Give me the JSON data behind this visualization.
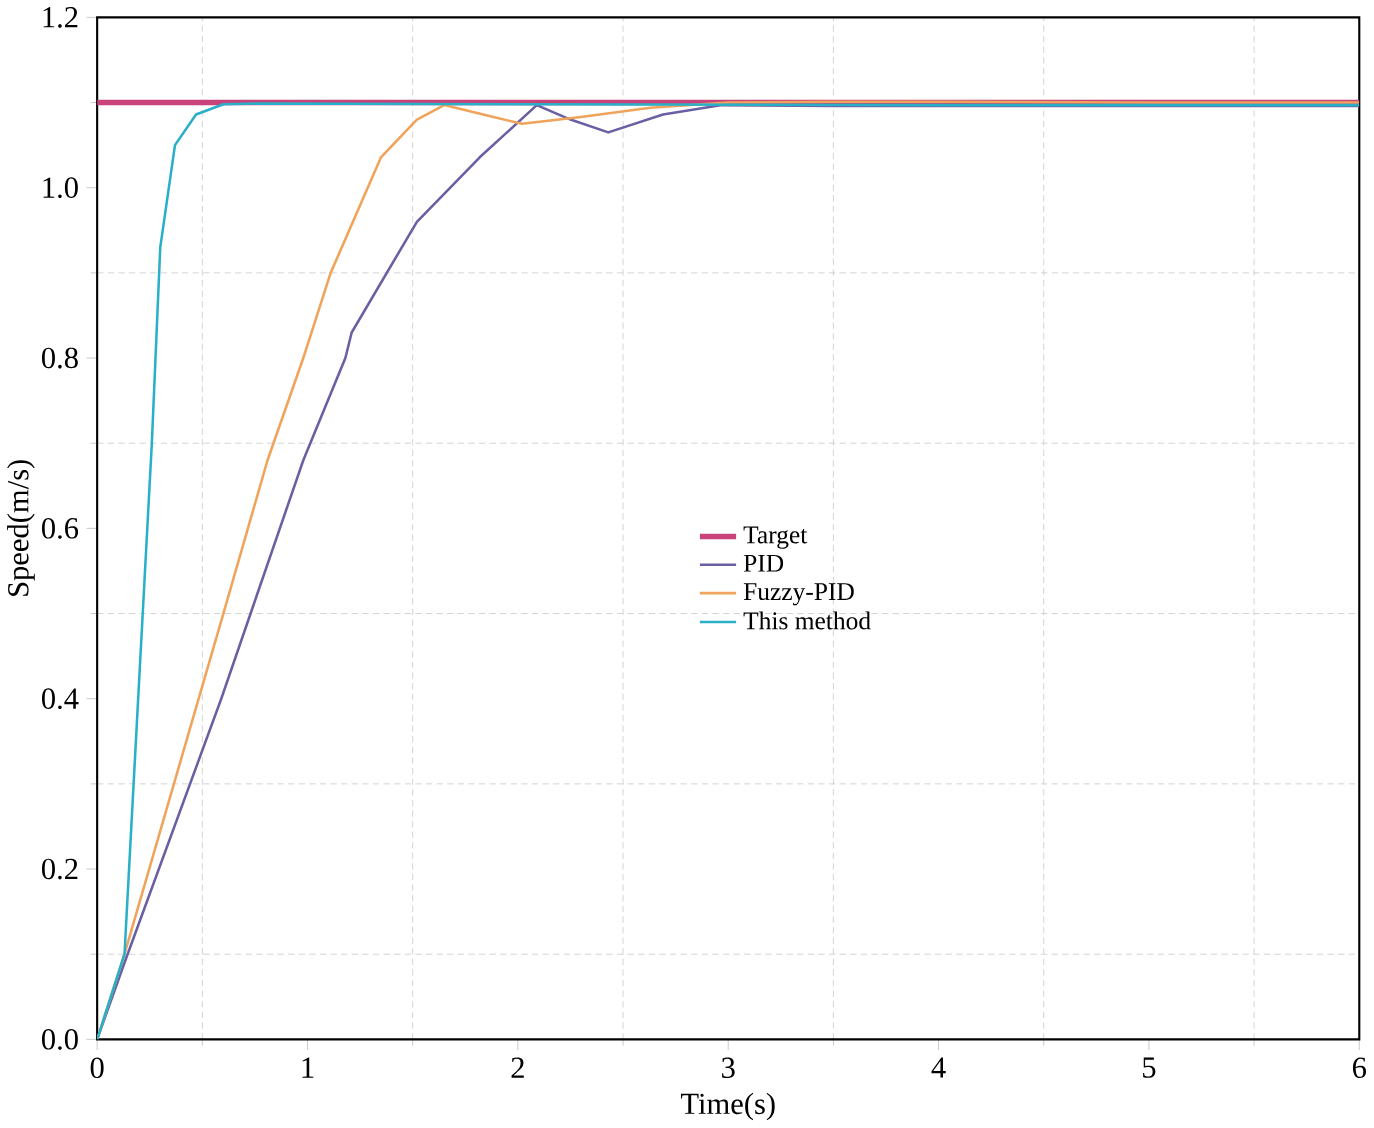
{
  "chart_data": {
    "type": "line",
    "xlabel": "Time(s)",
    "ylabel": "Speed(m/s)",
    "xlim": [
      0,
      6
    ],
    "ylim": [
      0,
      1.2
    ],
    "xticks": [
      0,
      1,
      2,
      3,
      4,
      5,
      6
    ],
    "yticks": [
      {
        "value": 0,
        "label": "0.0"
      },
      {
        "value": 0.2,
        "label": "0.2"
      },
      {
        "value": 0.4,
        "label": "0.4"
      },
      {
        "value": 0.6,
        "label": "0.6"
      },
      {
        "value": 0.8,
        "label": "0.8"
      },
      {
        "value": 1.0,
        "label": "1.0"
      },
      {
        "value": 1.2,
        "label": "1.2"
      }
    ],
    "grid": true,
    "legend": "right",
    "marker": "none",
    "line_style": "solid",
    "series": [
      {
        "name": "Target",
        "color": "#c8437a",
        "x": [
          0,
          6
        ],
        "values": [
          1.1,
          1.1
        ]
      },
      {
        "name": "PID",
        "color": "#6a5fa3",
        "x": [
          0,
          0.13,
          0.59,
          0.98,
          1.18,
          1.21,
          1.52,
          1.82,
          2.09,
          2.25,
          2.43,
          2.69,
          2.97,
          3.5,
          4,
          5,
          6
        ],
        "values": [
          0,
          0.09,
          0.4,
          0.68,
          0.8,
          0.83,
          0.96,
          1.036,
          1.097,
          1.08,
          1.065,
          1.086,
          1.097,
          1.096,
          1.096,
          1.096,
          1.096
        ]
      },
      {
        "name": "Fuzzy-PID",
        "color": "#f0a35a",
        "x": [
          0,
          0.13,
          0.6,
          0.81,
          0.98,
          1.11,
          1.35,
          1.52,
          1.65,
          1.85,
          2.02,
          2.3,
          2.63,
          3.0,
          3.5,
          4,
          5,
          6
        ],
        "values": [
          0,
          0.1,
          0.5,
          0.68,
          0.8,
          0.9,
          1.036,
          1.08,
          1.097,
          1.085,
          1.075,
          1.083,
          1.094,
          1.1,
          1.101,
          1.101,
          1.1,
          1.1
        ]
      },
      {
        "name": "This method",
        "color": "#29b0c8",
        "x": [
          0,
          0.13,
          0.26,
          0.3,
          0.37,
          0.47,
          0.6,
          0.8,
          2,
          4,
          6
        ],
        "values": [
          0,
          0.1,
          0.7,
          0.93,
          1.05,
          1.086,
          1.098,
          1.099,
          1.098,
          1.097,
          1.097
        ]
      }
    ]
  }
}
